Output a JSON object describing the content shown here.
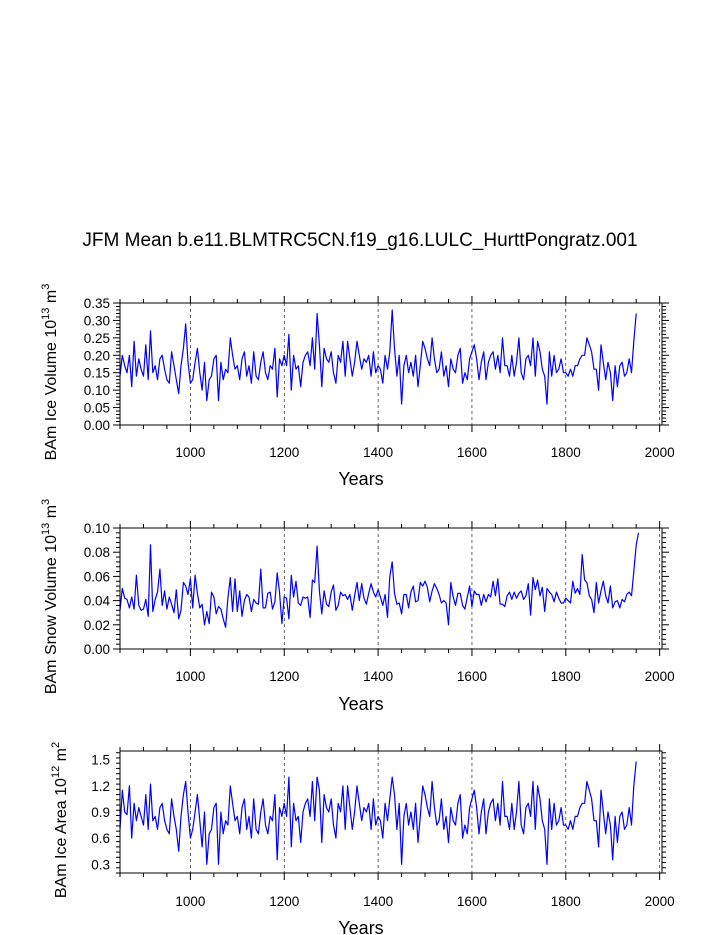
{
  "title": "JFM Mean b.e11.BLMTRC5CN.f19_g16.LULC_HurttPongratz.001",
  "series_color": "#0000ff",
  "chart_data": [
    {
      "type": "line",
      "ylabel": "BAm Ice Volume 10",
      "ylabel_exp": "13",
      "ylabel_unit": " m",
      "ylabel_unit_exp": "3",
      "xlabel": "Years",
      "xlim": [
        850,
        2005
      ],
      "ylim": [
        0,
        0.35
      ],
      "xticks": [
        1000,
        1200,
        1400,
        1600,
        1800,
        2000
      ],
      "xtick_labels": [
        "1000",
        "1200",
        "1400",
        "1600",
        "1800",
        "2000"
      ],
      "yticks": [
        0,
        0.05,
        0.1,
        0.15,
        0.2,
        0.25,
        0.3,
        0.35
      ],
      "ytick_labels": [
        "0.00",
        "0.05",
        "0.10",
        "0.15",
        "0.20",
        "0.25",
        "0.30",
        "0.35"
      ],
      "grid": "vertical dashed at major x ticks",
      "series": [
        {
          "x_start": 850,
          "x_step": 5,
          "values": [
            0.14,
            0.2,
            0.17,
            0.15,
            0.2,
            0.11,
            0.24,
            0.14,
            0.19,
            0.16,
            0.14,
            0.23,
            0.13,
            0.27,
            0.15,
            0.17,
            0.13,
            0.19,
            0.2,
            0.16,
            0.13,
            0.12,
            0.21,
            0.17,
            0.13,
            0.09,
            0.17,
            0.22,
            0.29,
            0.18,
            0.12,
            0.13,
            0.18,
            0.22,
            0.15,
            0.1,
            0.18,
            0.07,
            0.13,
            0.14,
            0.19,
            0.2,
            0.07,
            0.18,
            0.13,
            0.16,
            0.15,
            0.25,
            0.2,
            0.16,
            0.17,
            0.13,
            0.19,
            0.21,
            0.14,
            0.17,
            0.12,
            0.21,
            0.14,
            0.13,
            0.18,
            0.21,
            0.15,
            0.13,
            0.17,
            0.16,
            0.22,
            0.08,
            0.19,
            0.17,
            0.2,
            0.17,
            0.26,
            0.1,
            0.2,
            0.16,
            0.17,
            0.11,
            0.18,
            0.2,
            0.21,
            0.17,
            0.25,
            0.16,
            0.32,
            0.23,
            0.11,
            0.22,
            0.19,
            0.18,
            0.21,
            0.15,
            0.12,
            0.2,
            0.18,
            0.24,
            0.14,
            0.24,
            0.19,
            0.14,
            0.18,
            0.24,
            0.2,
            0.16,
            0.19,
            0.18,
            0.2,
            0.14,
            0.21,
            0.15,
            0.17,
            0.16,
            0.12,
            0.2,
            0.16,
            0.21,
            0.33,
            0.22,
            0.14,
            0.2,
            0.06,
            0.17,
            0.2,
            0.15,
            0.18,
            0.14,
            0.2,
            0.11,
            0.17,
            0.24,
            0.22,
            0.19,
            0.17,
            0.25,
            0.19,
            0.15,
            0.16,
            0.21,
            0.14,
            0.17,
            0.11,
            0.19,
            0.16,
            0.15,
            0.2,
            0.22,
            0.12,
            0.15,
            0.13,
            0.19,
            0.21,
            0.23,
            0.19,
            0.13,
            0.18,
            0.21,
            0.13,
            0.18,
            0.2,
            0.21,
            0.16,
            0.2,
            0.15,
            0.25,
            0.17,
            0.17,
            0.14,
            0.2,
            0.14,
            0.18,
            0.25,
            0.15,
            0.13,
            0.19,
            0.2,
            0.17,
            0.25,
            0.14,
            0.24,
            0.21,
            0.16,
            0.14,
            0.06,
            0.21,
            0.14,
            0.2,
            0.15,
            0.16,
            0.19,
            0.15,
            0.15,
            0.14,
            0.16,
            0.14,
            0.17,
            0.17,
            0.19,
            0.2,
            0.2,
            0.25,
            0.23,
            0.21,
            0.16,
            0.16,
            0.1,
            0.23,
            0.18,
            0.13,
            0.18,
            0.15,
            0.07,
            0.17,
            0.11,
            0.17,
            0.18,
            0.14,
            0.15,
            0.19,
            0.15,
            0.24,
            0.32
          ]
        }
      ]
    },
    {
      "type": "line",
      "ylabel": "BAm Snow Volume 10",
      "ylabel_exp": "13",
      "ylabel_unit": " m",
      "ylabel_unit_exp": "3",
      "xlabel": "Years",
      "xlim": [
        850,
        2005
      ],
      "ylim": [
        0,
        0.1
      ],
      "xticks": [
        1000,
        1200,
        1400,
        1600,
        1800,
        2000
      ],
      "xtick_labels": [
        "1000",
        "1200",
        "1400",
        "1600",
        "1800",
        "2000"
      ],
      "yticks": [
        0,
        0.02,
        0.04,
        0.06,
        0.08,
        0.1
      ],
      "ytick_labels": [
        "0.00",
        "0.02",
        "0.04",
        "0.06",
        "0.08",
        "0.10"
      ],
      "grid": "vertical dashed at major x ticks",
      "series": [
        {
          "x_start": 850,
          "x_step": 5,
          "values": [
            0.032,
            0.05,
            0.042,
            0.041,
            0.034,
            0.043,
            0.033,
            0.061,
            0.036,
            0.032,
            0.033,
            0.041,
            0.027,
            0.086,
            0.031,
            0.041,
            0.047,
            0.066,
            0.036,
            0.048,
            0.033,
            0.043,
            0.037,
            0.03,
            0.049,
            0.025,
            0.032,
            0.055,
            0.052,
            0.045,
            0.058,
            0.034,
            0.061,
            0.046,
            0.034,
            0.037,
            0.02,
            0.031,
            0.021,
            0.047,
            0.043,
            0.029,
            0.035,
            0.033,
            0.025,
            0.018,
            0.042,
            0.059,
            0.031,
            0.058,
            0.031,
            0.048,
            0.027,
            0.04,
            0.045,
            0.043,
            0.031,
            0.041,
            0.038,
            0.037,
            0.066,
            0.034,
            0.034,
            0.046,
            0.047,
            0.033,
            0.039,
            0.063,
            0.047,
            0.021,
            0.043,
            0.042,
            0.025,
            0.061,
            0.043,
            0.056,
            0.038,
            0.036,
            0.043,
            0.042,
            0.043,
            0.026,
            0.057,
            0.055,
            0.085,
            0.048,
            0.029,
            0.048,
            0.037,
            0.035,
            0.047,
            0.053,
            0.032,
            0.036,
            0.047,
            0.044,
            0.045,
            0.041,
            0.045,
            0.032,
            0.044,
            0.055,
            0.04,
            0.054,
            0.042,
            0.037,
            0.046,
            0.054,
            0.047,
            0.043,
            0.049,
            0.043,
            0.036,
            0.045,
            0.026,
            0.06,
            0.072,
            0.046,
            0.037,
            0.038,
            0.029,
            0.045,
            0.045,
            0.034,
            0.047,
            0.052,
            0.039,
            0.04,
            0.055,
            0.052,
            0.056,
            0.051,
            0.039,
            0.048,
            0.054,
            0.05,
            0.045,
            0.038,
            0.04,
            0.038,
            0.02,
            0.055,
            0.043,
            0.036,
            0.046,
            0.046,
            0.036,
            0.033,
            0.043,
            0.052,
            0.035,
            0.048,
            0.045,
            0.045,
            0.036,
            0.045,
            0.039,
            0.045,
            0.043,
            0.056,
            0.044,
            0.058,
            0.037,
            0.037,
            0.035,
            0.044,
            0.047,
            0.041,
            0.047,
            0.042,
            0.046,
            0.048,
            0.041,
            0.044,
            0.054,
            0.028,
            0.059,
            0.049,
            0.057,
            0.044,
            0.051,
            0.031,
            0.05,
            0.047,
            0.045,
            0.039,
            0.047,
            0.042,
            0.038,
            0.038,
            0.042,
            0.04,
            0.038,
            0.056,
            0.046,
            0.05,
            0.045,
            0.078,
            0.057,
            0.055,
            0.044,
            0.041,
            0.03,
            0.055,
            0.038,
            0.048,
            0.056,
            0.044,
            0.038,
            0.052,
            0.034,
            0.039,
            0.04,
            0.034,
            0.041,
            0.039,
            0.045,
            0.047,
            0.044,
            0.064,
            0.086,
            0.096
          ]
        }
      ]
    },
    {
      "type": "line",
      "ylabel": "BAm Ice Area 10",
      "ylabel_exp": "12",
      "ylabel_unit": " m",
      "ylabel_unit_exp": "2",
      "xlabel": "Years",
      "xlim": [
        850,
        2005
      ],
      "ylim": [
        0.2,
        1.6
      ],
      "xticks": [
        1000,
        1200,
        1400,
        1600,
        1800,
        2000
      ],
      "xtick_labels": [
        "1000",
        "1200",
        "1400",
        "1600",
        "1800",
        "2000"
      ],
      "yticks": [
        0.3,
        0.6,
        0.9,
        1.2,
        1.5
      ],
      "ytick_labels": [
        "0.3",
        "0.6",
        "0.9",
        "1.2",
        "1.5"
      ],
      "grid": "vertical dashed at major x ticks",
      "series": [
        {
          "x_start": 850,
          "x_step": 5,
          "values": [
            0.7,
            1.15,
            0.9,
            0.87,
            1.2,
            0.6,
            1.0,
            0.8,
            0.95,
            0.85,
            0.75,
            1.1,
            0.7,
            1.22,
            0.8,
            0.85,
            0.7,
            0.95,
            1.0,
            0.8,
            0.7,
            0.65,
            1.05,
            0.85,
            0.7,
            0.45,
            0.85,
            1.1,
            1.25,
            0.9,
            0.6,
            0.7,
            0.9,
            1.1,
            0.8,
            0.5,
            0.9,
            0.3,
            0.65,
            0.7,
            0.95,
            1.0,
            0.3,
            0.9,
            0.65,
            0.8,
            0.75,
            1.2,
            1.0,
            0.8,
            0.85,
            0.65,
            0.95,
            1.05,
            0.7,
            0.85,
            0.6,
            1.05,
            0.7,
            0.65,
            0.9,
            1.05,
            0.75,
            0.65,
            0.85,
            0.8,
            1.1,
            0.35,
            0.95,
            0.85,
            1.0,
            0.85,
            1.3,
            0.5,
            1.0,
            0.8,
            0.85,
            0.55,
            0.9,
            1.0,
            1.05,
            0.85,
            1.25,
            0.8,
            1.3,
            1.15,
            0.55,
            1.1,
            0.95,
            0.9,
            1.05,
            0.75,
            0.6,
            1.0,
            0.9,
            1.2,
            0.7,
            1.2,
            0.95,
            0.7,
            0.9,
            1.2,
            1.0,
            0.8,
            0.95,
            0.9,
            1.0,
            0.7,
            1.05,
            0.75,
            0.85,
            0.8,
            0.6,
            1.0,
            0.8,
            1.05,
            1.3,
            1.1,
            0.7,
            1.0,
            0.3,
            0.85,
            1.0,
            0.75,
            0.9,
            0.7,
            1.0,
            0.55,
            0.85,
            1.2,
            1.1,
            0.95,
            0.85,
            1.25,
            0.95,
            0.75,
            0.8,
            1.05,
            0.7,
            0.85,
            0.55,
            0.95,
            0.8,
            0.75,
            1.0,
            1.1,
            0.6,
            0.75,
            0.65,
            0.95,
            1.05,
            1.15,
            0.95,
            0.65,
            0.9,
            1.05,
            0.65,
            0.9,
            1.0,
            1.05,
            0.8,
            1.0,
            0.75,
            1.25,
            0.85,
            0.85,
            0.7,
            1.0,
            0.7,
            0.9,
            1.25,
            0.75,
            0.65,
            0.95,
            1.0,
            0.85,
            1.25,
            0.7,
            1.2,
            1.05,
            0.8,
            0.7,
            0.3,
            1.05,
            0.7,
            1.0,
            0.75,
            0.8,
            0.95,
            0.75,
            0.75,
            0.7,
            0.8,
            0.7,
            0.85,
            0.85,
            0.95,
            1.0,
            1.0,
            1.25,
            1.15,
            1.05,
            0.8,
            0.8,
            0.5,
            1.15,
            0.9,
            0.65,
            0.9,
            0.75,
            0.35,
            0.85,
            0.55,
            0.85,
            0.9,
            0.7,
            0.75,
            0.95,
            0.75,
            1.2,
            1.48
          ]
        }
      ]
    }
  ]
}
